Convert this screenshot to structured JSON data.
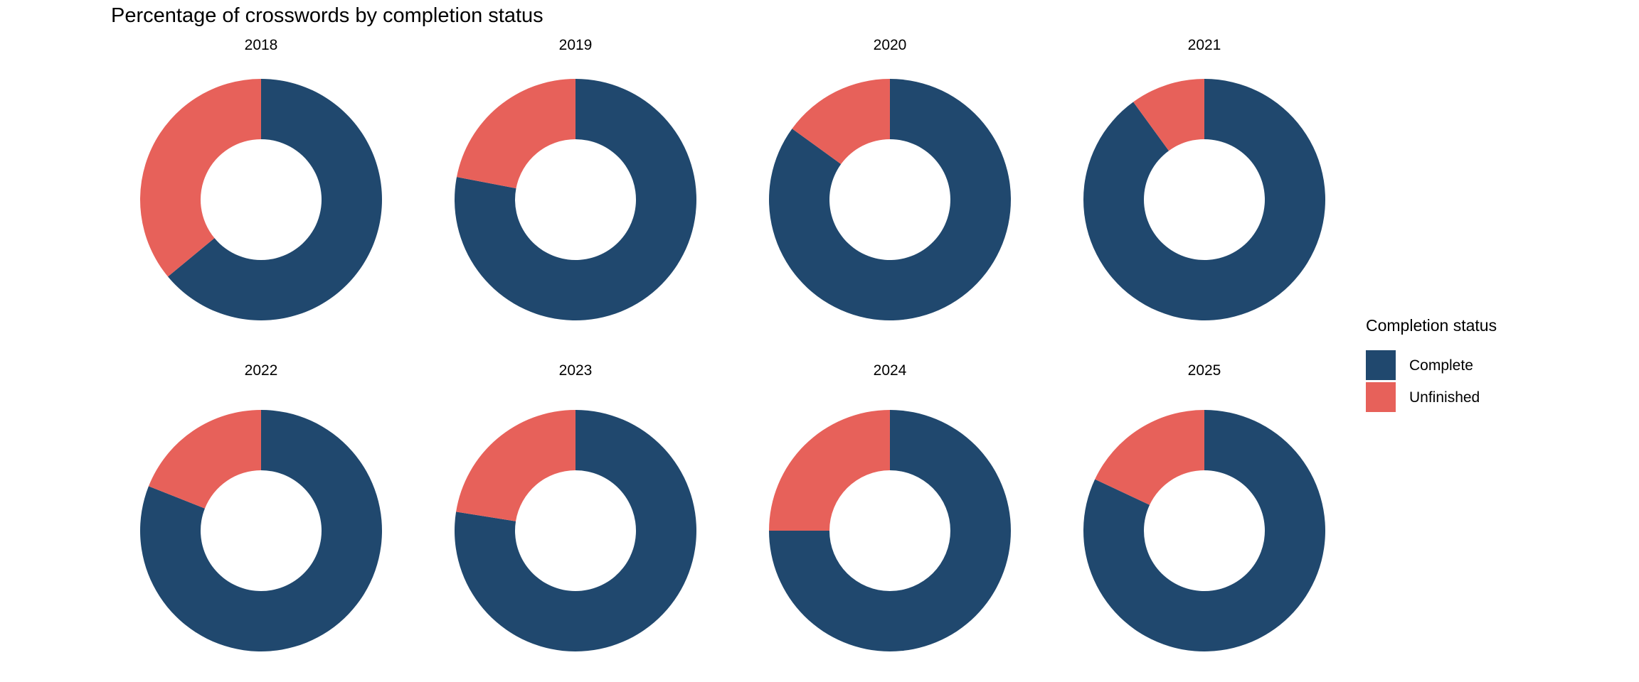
{
  "title": "Percentage of crosswords by completion status",
  "legend": {
    "title": "Completion status",
    "items": [
      {
        "label": "Complete",
        "color": "#20486E"
      },
      {
        "label": "Unfinished",
        "color": "#E7615A"
      }
    ]
  },
  "chart_data": {
    "type": "pie",
    "subtype": "donut",
    "title": "Percentage of crosswords by completion status",
    "facet_by": "year",
    "legend_title": "Completion status",
    "legend_position": "right",
    "legend_entries": [
      "Complete",
      "Unfinished"
    ],
    "colors": {
      "Complete": "#20486E",
      "Unfinished": "#E7615A"
    },
    "units": "percent",
    "start_angle": "12 o'clock",
    "direction": "clockwise",
    "facets": [
      {
        "year": "2018",
        "values": {
          "Complete": 64,
          "Unfinished": 36
        }
      },
      {
        "year": "2019",
        "values": {
          "Complete": 78,
          "Unfinished": 22
        }
      },
      {
        "year": "2020",
        "values": {
          "Complete": 85,
          "Unfinished": 15
        }
      },
      {
        "year": "2021",
        "values": {
          "Complete": 90,
          "Unfinished": 10
        }
      },
      {
        "year": "2022",
        "values": {
          "Complete": 81,
          "Unfinished": 19
        }
      },
      {
        "year": "2023",
        "values": {
          "Complete": 77.5,
          "Unfinished": 22.5
        }
      },
      {
        "year": "2024",
        "values": {
          "Complete": 75,
          "Unfinished": 25
        }
      },
      {
        "year": "2025",
        "values": {
          "Complete": 82,
          "Unfinished": 18
        }
      }
    ]
  }
}
